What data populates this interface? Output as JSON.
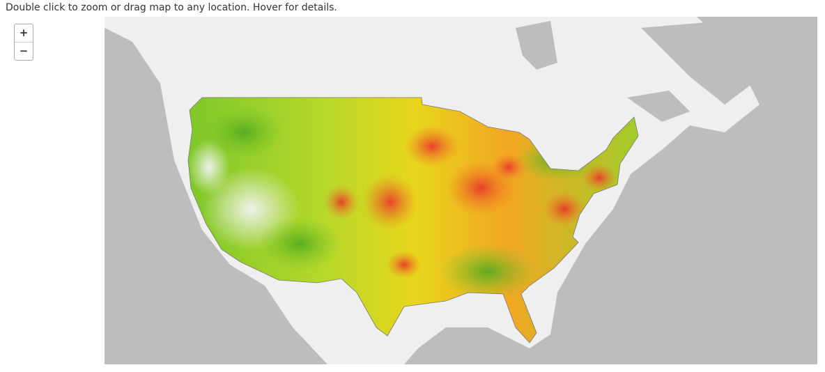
{
  "header": {
    "instruction": "Double click to zoom or drag map to any location. Hover for details."
  },
  "zoom": {
    "in": "+",
    "out": "−"
  }
}
